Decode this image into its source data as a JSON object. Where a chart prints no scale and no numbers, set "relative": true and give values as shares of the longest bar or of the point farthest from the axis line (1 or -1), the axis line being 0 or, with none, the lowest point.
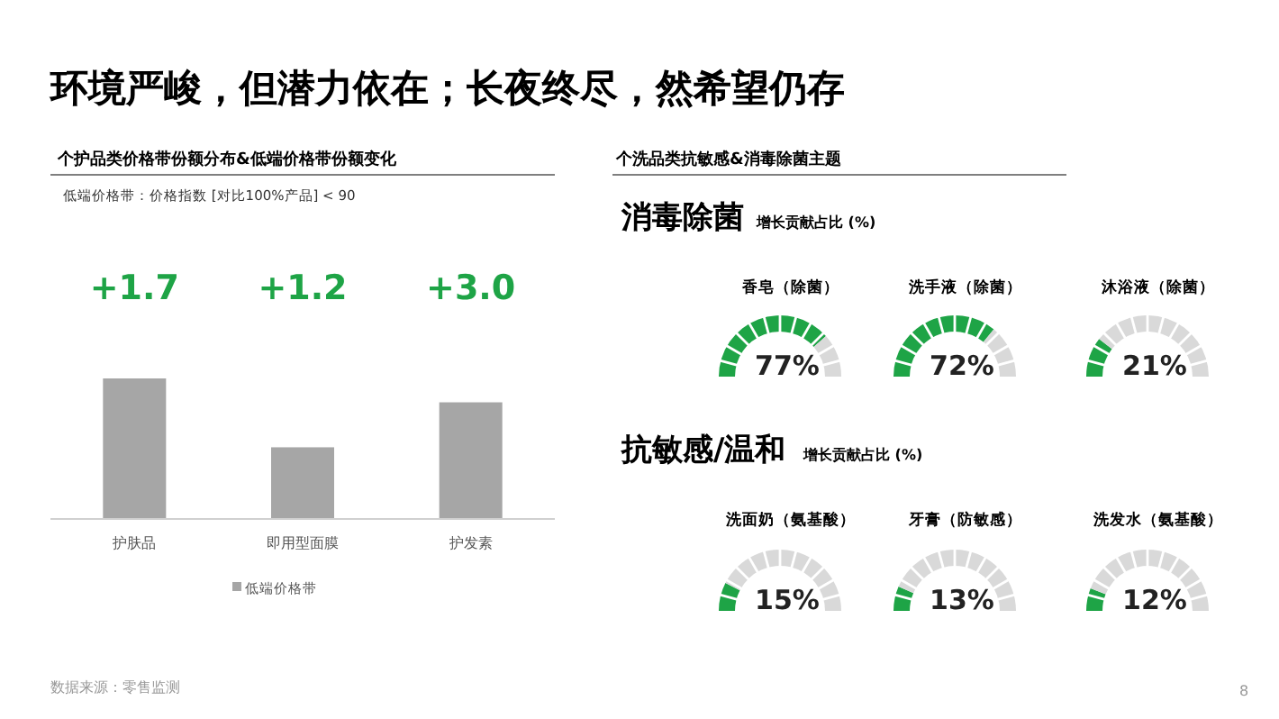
{
  "chart_data": [
    {
      "type": "other",
      "title": "环境严峻，但潜力依在；长夜终尽，然希望仍存",
      "annotations": [
        "个洗品类抗敏感&消毒除菌主题",
        "消毒除菌",
        "增长贡献占比 (%)",
        "抗敏感/温和",
        "增长贡献占比 (%)",
        "数据来源：零售监测",
        "8"
      ]
    },
    {
      "type": "bar",
      "relative": true,
      "title": "个护品类价格带份额分布&低端价格带份额变化",
      "subtitle": "低端价格带：价格指数 [对比100%产品] < 90",
      "categories": [
        "护肤品",
        "即用型面膜",
        "护发素"
      ],
      "series": [
        {
          "name": "低端价格带",
          "color": "#a6a6a6",
          "values": [
            1,
            0.51,
            0.83
          ]
        }
      ],
      "annotations": [
        "+1.7",
        "+1.2",
        "+3.0"
      ],
      "legend": "bottom"
    },
    {
      "type": "donut",
      "title": "香皂（除菌）",
      "categories": [
        null,
        null
      ],
      "values": [
        77,
        23
      ],
      "colors": [
        "#1ea446",
        "#d9d9d9"
      ],
      "annotations": [
        "77%"
      ]
    },
    {
      "type": "donut",
      "title": "洗手液（除菌）",
      "categories": [
        null,
        null
      ],
      "values": [
        72,
        28
      ],
      "colors": [
        "#1ea446",
        "#d9d9d9"
      ],
      "annotations": [
        "72%"
      ]
    },
    {
      "type": "donut",
      "title": "沐浴液（除菌）",
      "categories": [
        null,
        null
      ],
      "values": [
        21,
        79
      ],
      "colors": [
        "#1ea446",
        "#d9d9d9"
      ],
      "annotations": [
        "21%"
      ]
    },
    {
      "type": "donut",
      "title": "洗面奶（氨基酸）",
      "categories": [
        null,
        null
      ],
      "values": [
        15,
        85
      ],
      "colors": [
        "#1ea446",
        "#d9d9d9"
      ],
      "annotations": [
        "15%"
      ]
    },
    {
      "type": "donut",
      "title": "牙膏（防敏感）",
      "categories": [
        null,
        null
      ],
      "values": [
        13,
        87
      ],
      "colors": [
        "#1ea446",
        "#d9d9d9"
      ],
      "annotations": [
        "13%"
      ]
    },
    {
      "type": "donut",
      "title": "洗发水（氨基酸）",
      "categories": [
        null,
        null
      ],
      "values": [
        12,
        88
      ],
      "colors": [
        "#1ea446",
        "#d9d9d9"
      ],
      "annotations": [
        "12%"
      ]
    }
  ]
}
